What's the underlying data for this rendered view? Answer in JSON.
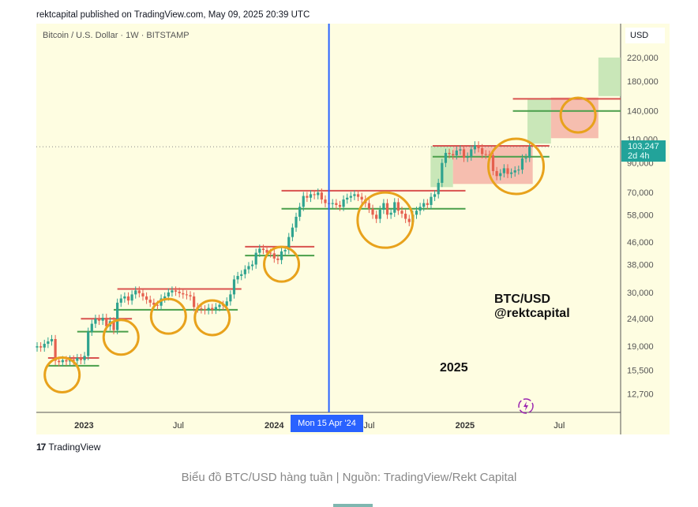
{
  "header": {
    "published": "rektcapital published on TradingView.com, May 09, 2025 20:39 UTC"
  },
  "symbol": {
    "title": "Bitcoin / U.S. Dollar · 1W · BITSTAMP",
    "currency": "USD"
  },
  "last_price": {
    "value": "103,247",
    "countdown": "2d 4h"
  },
  "crosshair": {
    "date_label": "Mon 15 Apr '24",
    "date": "2024-04-15"
  },
  "overlay_text": {
    "pair": "BTC/USD",
    "handle": "@rektcapital",
    "year": "2025"
  },
  "footer": {
    "brand": "TradingView",
    "caption": "Biểu đồ BTC/USD hàng tuần | Nguồn: TradingView/Rekt Capital"
  },
  "colors": {
    "background": "#fefde1",
    "up": "#2fa38f",
    "down": "#e5604f",
    "resistance": "#d9534f",
    "support": "#4a9f4a",
    "circle": "#e8a21c",
    "crosshair": "#2962ff",
    "last_price": "#22a39a",
    "green_box": "#bfe3b0",
    "red_box": "#f4b3a6"
  },
  "chart_data": {
    "type": "candlestick",
    "title": "Bitcoin / U.S. Dollar · 1W · BITSTAMP",
    "interval": "1W",
    "first_week": "2022-10-03",
    "y_scale": "log",
    "ylim": [
      11500,
      230000
    ],
    "xlim": [
      "2022-10-03",
      "2025-10-27"
    ],
    "y_ticks": [
      220000,
      180000,
      140000,
      110000,
      90000,
      70000,
      58000,
      46000,
      38000,
      30000,
      24000,
      19000,
      15500,
      12700
    ],
    "y_tick_labels": [
      "220,000",
      "180,000",
      "140,000",
      "110,000",
      "90,000",
      "70,000",
      "58,000",
      "46,000",
      "38,000",
      "30,000",
      "24,000",
      "19,000",
      "15,500",
      "12,700"
    ],
    "x_ticks": [
      {
        "date": "2023-01-01",
        "label": "2023",
        "bold": true
      },
      {
        "date": "2023-07-01",
        "label": "Jul",
        "bold": false
      },
      {
        "date": "2024-01-01",
        "label": "2024",
        "bold": true
      },
      {
        "date": "2024-07-01",
        "label": "Jul",
        "bold": false
      },
      {
        "date": "2025-01-01",
        "label": "2025",
        "bold": true
      },
      {
        "date": "2025-07-01",
        "label": "Jul",
        "bold": false
      }
    ],
    "weekly_closes": [
      19000,
      18800,
      19400,
      19800,
      20200,
      16800,
      16600,
      16900,
      16700,
      17000,
      16800,
      17200,
      16900,
      17500,
      21500,
      23000,
      24000,
      23600,
      24200,
      22500,
      23500,
      21800,
      27500,
      28500,
      29000,
      28000,
      29500,
      30500,
      29800,
      29000,
      28200,
      27500,
      27000,
      26800,
      28500,
      29000,
      30000,
      30500,
      30200,
      29800,
      29500,
      29300,
      29000,
      26500,
      26200,
      26000,
      25800,
      26300,
      25900,
      26500,
      27000,
      26800,
      27800,
      29500,
      33500,
      34500,
      35000,
      36500,
      37500,
      38000,
      42000,
      43500,
      43000,
      42000,
      41800,
      40000,
      39500,
      42500,
      43000,
      48000,
      52000,
      57000,
      62000,
      68000,
      67000,
      69000,
      68500,
      70000,
      66000,
      64000,
      63500,
      64000,
      63000,
      62000,
      66000,
      67000,
      68000,
      69000,
      67500,
      66000,
      64000,
      61000,
      58000,
      56000,
      60500,
      64000,
      58000,
      59000,
      64500,
      60000,
      58500,
      56000,
      54500,
      58000,
      60000,
      62000,
      64000,
      63000,
      67500,
      69000,
      76000,
      90000,
      98000,
      97000,
      96000,
      100000,
      101000,
      94000,
      95000,
      101000,
      104500,
      102000,
      97000,
      96500,
      96000,
      84000,
      80500,
      82500,
      86000,
      82000,
      83000,
      84500,
      85000,
      93500,
      94000,
      103247
    ],
    "current_price": 103247,
    "levels": [
      {
        "type": "resistance",
        "price": 17200,
        "from": "2022-10-24",
        "to": "2023-01-30"
      },
      {
        "type": "support",
        "price": 16100,
        "from": "2022-10-24",
        "to": "2023-01-30"
      },
      {
        "type": "resistance",
        "price": 24000,
        "from": "2022-12-26",
        "to": "2023-04-03"
      },
      {
        "type": "support",
        "price": 21500,
        "from": "2022-12-19",
        "to": "2023-03-27"
      },
      {
        "type": "resistance",
        "price": 30900,
        "from": "2023-03-06",
        "to": "2023-10-30"
      },
      {
        "type": "support",
        "price": 25900,
        "from": "2023-02-27",
        "to": "2023-10-23"
      },
      {
        "type": "resistance",
        "price": 44200,
        "from": "2023-11-06",
        "to": "2024-03-18"
      },
      {
        "type": "support",
        "price": 41000,
        "from": "2023-11-06",
        "to": "2024-03-18"
      },
      {
        "type": "resistance",
        "price": 71100,
        "from": "2024-01-15",
        "to": "2025-01-02"
      },
      {
        "type": "support",
        "price": 61000,
        "from": "2024-01-15",
        "to": "2025-01-02"
      },
      {
        "type": "resistance",
        "price": 104000,
        "from": "2024-10-31",
        "to": "2025-06-12"
      },
      {
        "type": "support",
        "price": 94900,
        "from": "2024-10-31",
        "to": "2025-06-12"
      },
      {
        "type": "resistance",
        "price": 155000,
        "from": "2025-04-03",
        "to": "2025-10-27"
      },
      {
        "type": "support",
        "price": 139800,
        "from": "2025-04-03",
        "to": "2025-10-27"
      }
    ],
    "boxes": [
      {
        "type": "green",
        "from": "2024-10-27",
        "to": "2024-12-09",
        "top": 104000,
        "bottom": 73300
      },
      {
        "type": "red",
        "from": "2024-12-09",
        "to": "2025-05-11",
        "top": 104000,
        "bottom": 75300
      },
      {
        "type": "green",
        "from": "2025-05-01",
        "to": "2025-06-15",
        "top": 154300,
        "bottom": 106100
      },
      {
        "type": "red",
        "from": "2025-06-15",
        "to": "2025-09-14",
        "top": 156800,
        "bottom": 111000
      },
      {
        "type": "green",
        "from": "2025-09-14",
        "to": "2025-10-27",
        "top": 220000,
        "bottom": 158700
      }
    ],
    "circles": [
      {
        "date": "2022-11-20",
        "price": 14900,
        "size": "small"
      },
      {
        "date": "2023-03-13",
        "price": 20500,
        "size": "small"
      },
      {
        "date": "2023-06-12",
        "price": 24500,
        "size": "small"
      },
      {
        "date": "2023-09-04",
        "price": 24200,
        "size": "small"
      },
      {
        "date": "2024-01-15",
        "price": 38100,
        "size": "small"
      },
      {
        "date": "2024-08-01",
        "price": 55400,
        "size": "large"
      },
      {
        "date": "2025-04-09",
        "price": 87400,
        "size": "large"
      },
      {
        "date": "2025-08-06",
        "price": 135000,
        "size": "small"
      }
    ]
  }
}
